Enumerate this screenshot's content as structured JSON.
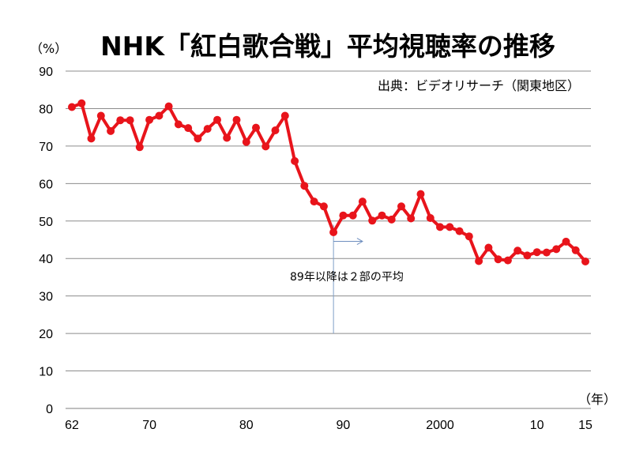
{
  "chart_data": {
    "type": "line",
    "title": "NHK「紅白歌合戦」平均視聴率の推移",
    "ylabel": "（%）",
    "xlabel": "（年）",
    "source_note": "出典：ビデオリサーチ（関東地区）",
    "ylim": [
      0,
      90
    ],
    "yticks": [
      0,
      10,
      20,
      30,
      40,
      50,
      60,
      70,
      80,
      90
    ],
    "xlim": [
      1962,
      2015
    ],
    "xticks": [
      {
        "year": 1962,
        "label": "62"
      },
      {
        "year": 1970,
        "label": "70"
      },
      {
        "year": 1980,
        "label": "80"
      },
      {
        "year": 1990,
        "label": "90"
      },
      {
        "year": 2000,
        "label": "2000"
      },
      {
        "year": 2010,
        "label": "10"
      },
      {
        "year": 2015,
        "label": "15"
      }
    ],
    "grid": true,
    "color": "#e8141b",
    "series": [
      {
        "x": [
          1962,
          1963,
          1964,
          1965,
          1966,
          1967,
          1968,
          1969,
          1970,
          1971,
          1972,
          1973,
          1974,
          1975,
          1976,
          1977,
          1978,
          1979,
          1980,
          1981,
          1982,
          1983,
          1984,
          1985,
          1986,
          1987,
          1988,
          1989,
          1990,
          1991,
          1992,
          1993,
          1994,
          1995,
          1996,
          1997,
          1998,
          1999,
          2000,
          2001,
          2002,
          2003,
          2004,
          2005,
          2006,
          2007,
          2008,
          2009,
          2010,
          2011,
          2012,
          2013,
          2014,
          2015
        ],
        "values": [
          80.4,
          81.4,
          72.0,
          78.1,
          74.0,
          76.9,
          76.9,
          69.7,
          77.0,
          78.1,
          80.6,
          75.8,
          74.8,
          72.0,
          74.6,
          77.0,
          72.2,
          77.0,
          71.1,
          74.9,
          69.9,
          74.2,
          78.1,
          66.0,
          59.4,
          55.2,
          53.9,
          47.0,
          51.5,
          51.5,
          55.2,
          50.1,
          51.5,
          50.4,
          53.9,
          50.7,
          57.2,
          50.8,
          48.4,
          48.4,
          47.3,
          45.9,
          39.3,
          42.9,
          39.8,
          39.5,
          42.1,
          40.8,
          41.7,
          41.6,
          42.5,
          44.5,
          42.2,
          39.2
        ]
      }
    ],
    "annotation": {
      "text": "89年以降は２部の平均",
      "year": 1989,
      "value": 49.0,
      "arrow_to_year": 1992
    }
  }
}
